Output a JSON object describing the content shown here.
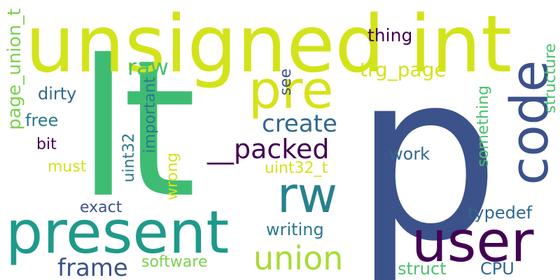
{
  "words": {
    "p": {
      "text": "p",
      "color": "#3b528b"
    },
    "lt": {
      "text": "lt",
      "color": "#3fbc73"
    },
    "unsigned_int": {
      "text": "unsigned int",
      "color": "#d3e31a"
    },
    "present": {
      "text": "present",
      "color": "#1f9a8a"
    },
    "pre": {
      "text": "pre",
      "color": "#d7e219"
    },
    "code": {
      "text": "code",
      "color": "#3b528b"
    },
    "user": {
      "text": "user",
      "color": "#440154"
    },
    "rw": {
      "text": "rw",
      "color": "#26828e"
    },
    "union": {
      "text": "union",
      "color": "#a8db34"
    },
    "packed": {
      "text": "__packed",
      "color": "#440154"
    },
    "frame": {
      "text": "frame",
      "color": "#3b528b"
    },
    "create": {
      "text": "create",
      "color": "#31688e"
    },
    "page_union_t": {
      "text": "page_union_t",
      "color": "#7ad151"
    },
    "trg_page": {
      "text": "trg_page",
      "color": "#d3e31a"
    },
    "raw": {
      "text": "raw",
      "color": "#4ac16d"
    },
    "thing": {
      "text": "thing",
      "color": "#440154"
    },
    "see": {
      "text": "see",
      "color": "#3b528b"
    },
    "dirty": {
      "text": "dirty",
      "color": "#31688e"
    },
    "free": {
      "text": "free",
      "color": "#2a788e"
    },
    "bit": {
      "text": "bit",
      "color": "#440154"
    },
    "must": {
      "text": "must",
      "color": "#d3e31a"
    },
    "uint32": {
      "text": "uint32",
      "color": "#2a788e"
    },
    "important": {
      "text": "important",
      "color": "#2a788e"
    },
    "wrong": {
      "text": "wrong",
      "color": "#d3e31a"
    },
    "uint32_t": {
      "text": "uint32_t",
      "color": "#d3e31a"
    },
    "work": {
      "text": "work",
      "color": "#31688e"
    },
    "something": {
      "text": "something",
      "color": "#4ac16d"
    },
    "structure": {
      "text": "structure",
      "color": "#4ac16d"
    },
    "exact": {
      "text": "exact",
      "color": "#3b528b"
    },
    "typedef": {
      "text": "typedef",
      "color": "#31688e"
    },
    "writing": {
      "text": "writing",
      "color": "#2a788e"
    },
    "software": {
      "text": "software",
      "color": "#7ad151"
    },
    "struct": {
      "text": "struct",
      "color": "#4ac16d"
    },
    "cpu": {
      "text": "CPU",
      "color": "#31688e"
    }
  }
}
